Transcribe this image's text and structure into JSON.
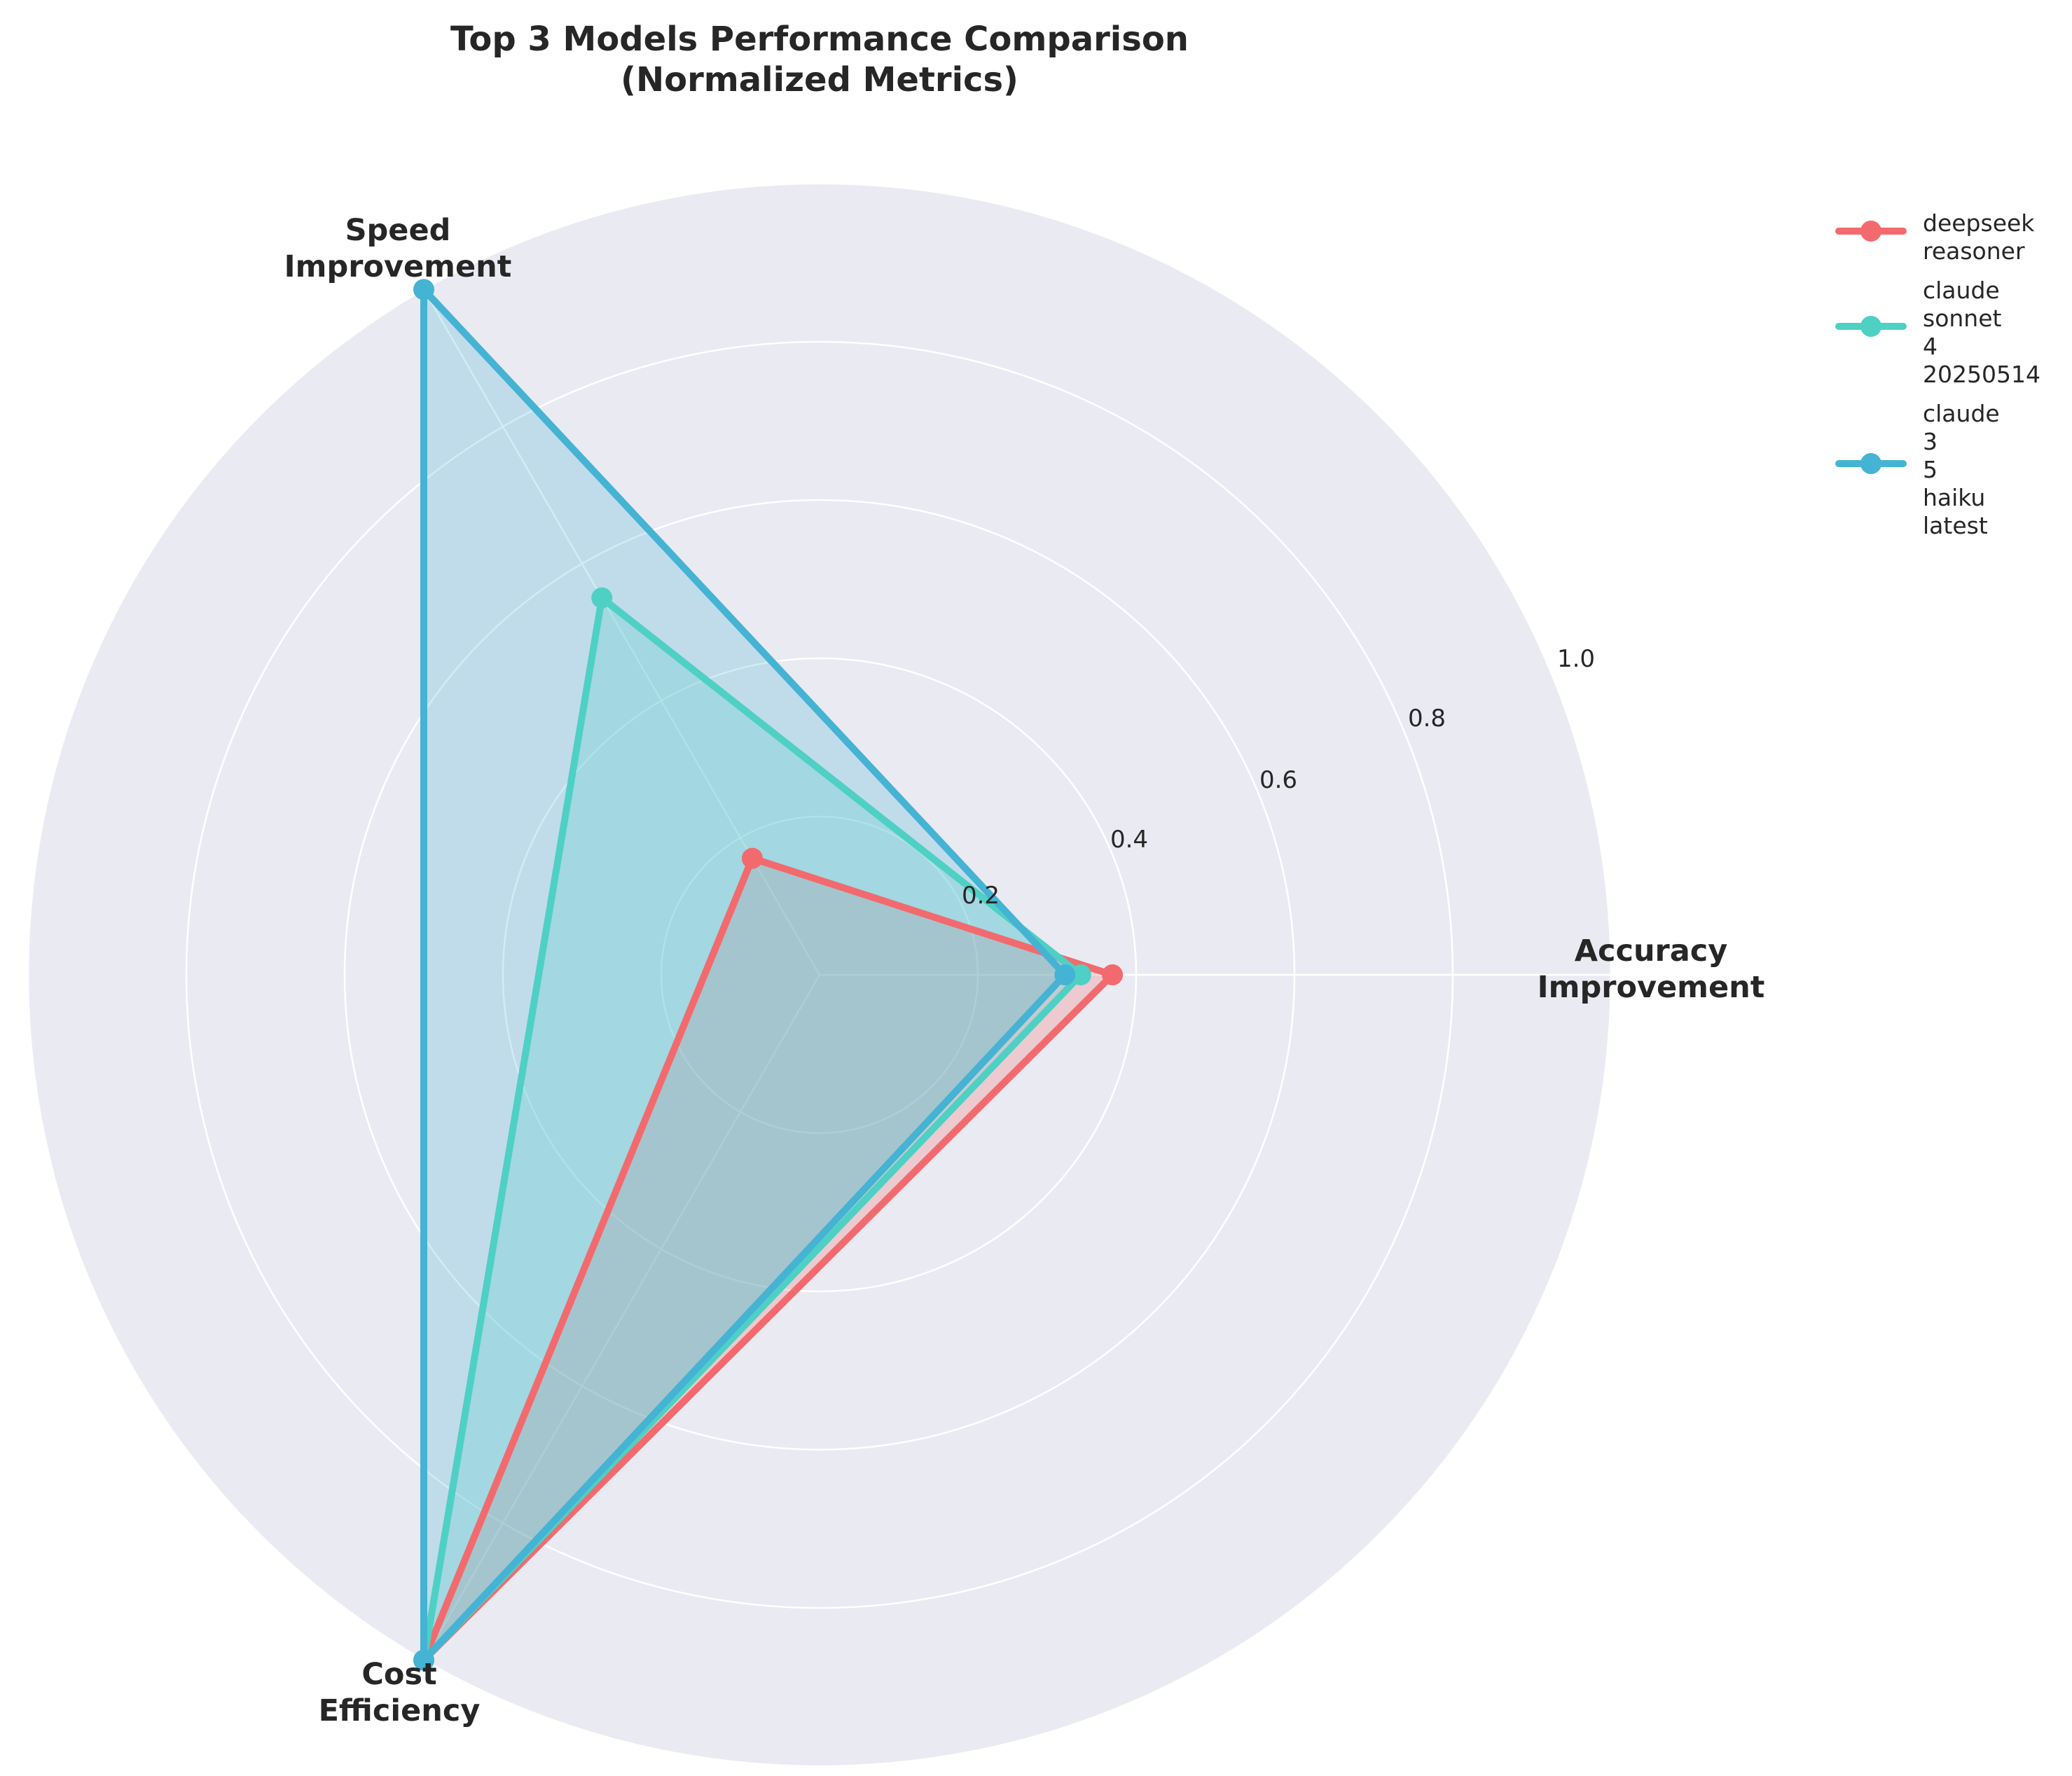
{
  "chart_data": {
    "type": "radar",
    "title": "Top 3 Models Performance Comparison\n(Normalized Metrics)",
    "axes": [
      "Accuracy\nImprovement",
      "Speed\nImprovement",
      "Cost\nEfficiency"
    ],
    "rlim": [
      0,
      1.0
    ],
    "radial_ticks": [
      0.2,
      0.4,
      0.6,
      0.8,
      1.0
    ],
    "radial_tick_labels": [
      "0.2",
      "0.4",
      "0.6",
      "0.8",
      "1.0"
    ],
    "grid": true,
    "legend_position": "top-right",
    "series": [
      {
        "name": "deepseek\nreasoner",
        "color": "#f26a6d",
        "values": [
          0.37,
          0.17,
          1.0
        ]
      },
      {
        "name": "claude\nsonnet\n4\n20250514",
        "color": "#4fd0c4",
        "values": [
          0.33,
          0.55,
          1.0
        ]
      },
      {
        "name": "claude\n3\n5\nhaiku\nlatest",
        "color": "#45b3d3",
        "values": [
          0.31,
          1.0,
          1.0
        ]
      }
    ]
  }
}
